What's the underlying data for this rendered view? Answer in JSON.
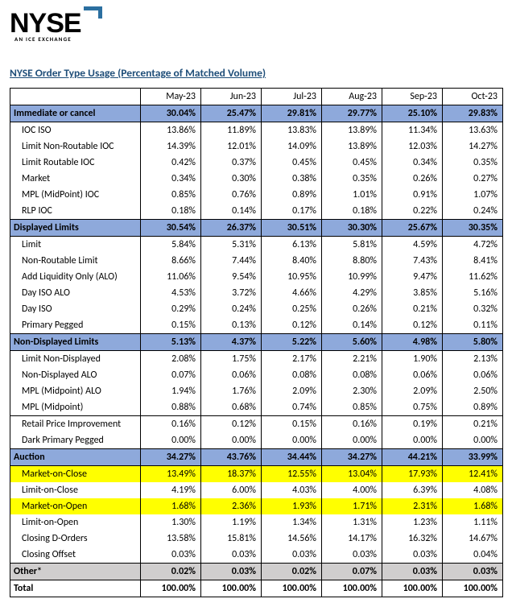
{
  "logo": {
    "text": "NYSE",
    "tagline": "AN ICE EXCHANGE"
  },
  "title": "NYSE Order Type Usage (Percentage of Matched Volume)",
  "months": [
    "May-23",
    "Jun-23",
    "Jul-23",
    "Aug-23",
    "Sep-23",
    "Oct-23"
  ],
  "colors": {
    "section_bg": "#8ea9db",
    "grey_bg": "#d0cece",
    "highlight_bg": "#ffff00",
    "title_color": "#1f4e79",
    "logo_accent": "#2b6fa0"
  },
  "rows": [
    {
      "type": "section",
      "label": "Immediate or cancel",
      "vals": [
        "30.04%",
        "25.47%",
        "29.81%",
        "29.77%",
        "25.10%",
        "29.83%"
      ]
    },
    {
      "type": "data",
      "label": "IOC ISO",
      "vals": [
        "13.86%",
        "11.89%",
        "13.83%",
        "13.89%",
        "11.34%",
        "13.63%"
      ]
    },
    {
      "type": "data",
      "label": "Limit Non-Routable IOC",
      "vals": [
        "14.39%",
        "12.01%",
        "14.09%",
        "13.89%",
        "12.03%",
        "14.27%"
      ]
    },
    {
      "type": "data",
      "label": "Limit Routable IOC",
      "vals": [
        "0.42%",
        "0.37%",
        "0.45%",
        "0.45%",
        "0.34%",
        "0.35%"
      ]
    },
    {
      "type": "data",
      "label": "Market",
      "vals": [
        "0.34%",
        "0.30%",
        "0.38%",
        "0.35%",
        "0.26%",
        "0.27%"
      ]
    },
    {
      "type": "data",
      "label": "MPL (MidPoint) IOC",
      "vals": [
        "0.85%",
        "0.76%",
        "0.89%",
        "1.01%",
        "0.91%",
        "1.07%"
      ]
    },
    {
      "type": "data",
      "label": "RLP IOC",
      "vals": [
        "0.18%",
        "0.14%",
        "0.17%",
        "0.18%",
        "0.22%",
        "0.24%"
      ]
    },
    {
      "type": "section",
      "label": "Displayed Limits",
      "vals": [
        "30.54%",
        "26.37%",
        "30.51%",
        "30.30%",
        "25.67%",
        "30.35%"
      ]
    },
    {
      "type": "data",
      "label": "Limit",
      "vals": [
        "5.84%",
        "5.31%",
        "6.13%",
        "5.81%",
        "4.59%",
        "4.72%"
      ]
    },
    {
      "type": "data",
      "label": "Non-Routable Limit",
      "vals": [
        "8.66%",
        "7.44%",
        "8.40%",
        "8.80%",
        "7.43%",
        "8.41%"
      ]
    },
    {
      "type": "data",
      "label": "Add Liquidity Only (ALO)",
      "vals": [
        "11.06%",
        "9.54%",
        "10.95%",
        "10.99%",
        "9.47%",
        "11.62%"
      ]
    },
    {
      "type": "data",
      "label": "Day ISO ALO",
      "vals": [
        "4.53%",
        "3.72%",
        "4.66%",
        "4.29%",
        "3.85%",
        "5.16%"
      ]
    },
    {
      "type": "data",
      "label": "Day ISO",
      "vals": [
        "0.29%",
        "0.24%",
        "0.25%",
        "0.26%",
        "0.21%",
        "0.32%"
      ]
    },
    {
      "type": "data",
      "label": "Primary Pegged",
      "vals": [
        "0.15%",
        "0.13%",
        "0.12%",
        "0.14%",
        "0.12%",
        "0.11%"
      ]
    },
    {
      "type": "section",
      "label": "Non-Displayed Limits",
      "vals": [
        "5.13%",
        "4.37%",
        "5.22%",
        "5.60%",
        "4.98%",
        "5.80%"
      ]
    },
    {
      "type": "data",
      "label": "Limit Non-Displayed",
      "vals": [
        "2.08%",
        "1.75%",
        "2.17%",
        "2.21%",
        "1.90%",
        "2.13%"
      ]
    },
    {
      "type": "data",
      "label": "Non-Displayed ALO",
      "vals": [
        "0.07%",
        "0.06%",
        "0.08%",
        "0.08%",
        "0.06%",
        "0.06%"
      ]
    },
    {
      "type": "data",
      "label": "MPL (Midpoint) ALO",
      "vals": [
        "1.94%",
        "1.76%",
        "2.09%",
        "2.30%",
        "2.09%",
        "2.50%"
      ]
    },
    {
      "type": "data",
      "label": "MPL (Midpoint)",
      "vals": [
        "0.88%",
        "0.68%",
        "0.74%",
        "0.85%",
        "0.75%",
        "0.89%"
      ]
    },
    {
      "type": "data",
      "topBorder": true,
      "label": "Retail Price Improvement",
      "vals": [
        "0.16%",
        "0.12%",
        "0.15%",
        "0.16%",
        "0.19%",
        "0.21%"
      ]
    },
    {
      "type": "data",
      "label": "Dark Primary Pegged",
      "vals": [
        "0.00%",
        "0.00%",
        "0.00%",
        "0.00%",
        "0.00%",
        "0.00%"
      ]
    },
    {
      "type": "section",
      "label": "Auction",
      "vals": [
        "34.27%",
        "43.76%",
        "34.44%",
        "34.27%",
        "44.21%",
        "33.99%"
      ]
    },
    {
      "type": "data",
      "hl": true,
      "label": "Market-on-Close",
      "vals": [
        "13.49%",
        "18.37%",
        "12.55%",
        "13.04%",
        "17.93%",
        "12.41%"
      ]
    },
    {
      "type": "data",
      "label": "Limit-on-Close",
      "vals": [
        "4.19%",
        "6.00%",
        "4.03%",
        "4.00%",
        "6.39%",
        "4.08%"
      ]
    },
    {
      "type": "data",
      "hl": true,
      "label": "Market-on-Open",
      "vals": [
        "1.68%",
        "2.36%",
        "1.93%",
        "1.71%",
        "2.31%",
        "1.68%"
      ]
    },
    {
      "type": "data",
      "label": "Limit-on-Open",
      "vals": [
        "1.30%",
        "1.19%",
        "1.34%",
        "1.31%",
        "1.23%",
        "1.11%"
      ]
    },
    {
      "type": "data",
      "label": "Closing D-Orders",
      "vals": [
        "13.58%",
        "15.81%",
        "14.56%",
        "14.17%",
        "16.32%",
        "14.67%"
      ]
    },
    {
      "type": "data",
      "label": "Closing Offset",
      "vals": [
        "0.03%",
        "0.03%",
        "0.03%",
        "0.03%",
        "0.03%",
        "0.04%"
      ]
    },
    {
      "type": "grey",
      "label": "Other*",
      "vals": [
        "0.02%",
        "0.03%",
        "0.02%",
        "0.07%",
        "0.03%",
        "0.03%"
      ]
    },
    {
      "type": "total",
      "label": "Total",
      "vals": [
        "100.00%",
        "100.00%",
        "100.00%",
        "100.00%",
        "100.00%",
        "100.00%"
      ]
    }
  ]
}
